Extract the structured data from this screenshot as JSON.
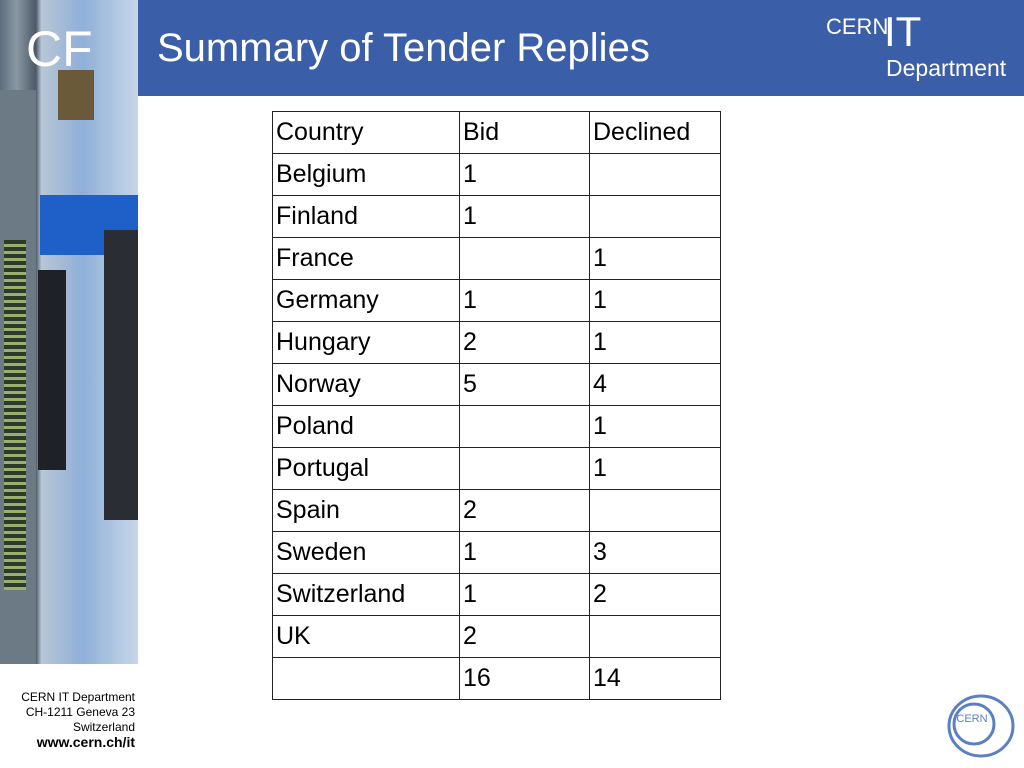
{
  "header": {
    "section_label": "CF",
    "title": "Summary of Tender Replies",
    "logo": {
      "cern": "CERN",
      "it": "IT",
      "department": "Department"
    }
  },
  "table": {
    "columns": [
      "Country",
      "Bid",
      "Declined"
    ],
    "rows": [
      [
        "Belgium",
        1,
        null
      ],
      [
        "Finland",
        1,
        null
      ],
      [
        "France",
        null,
        1
      ],
      [
        "Germany",
        1,
        1
      ],
      [
        "Hungary",
        2,
        1
      ],
      [
        "Norway",
        5,
        4
      ],
      [
        "Poland",
        null,
        1
      ],
      [
        "Portugal",
        null,
        1
      ],
      [
        "Spain",
        2,
        null
      ],
      [
        "Sweden",
        1,
        3
      ],
      [
        "Switzerland",
        1,
        2
      ],
      [
        "UK",
        2,
        null
      ],
      [
        null,
        16,
        14
      ]
    ]
  },
  "footer": {
    "lines": [
      "CERN IT Department",
      "CH-1211 Geneva 23",
      "Switzerland"
    ],
    "url": "www.cern.ch/it",
    "logo_text": "CERN"
  }
}
